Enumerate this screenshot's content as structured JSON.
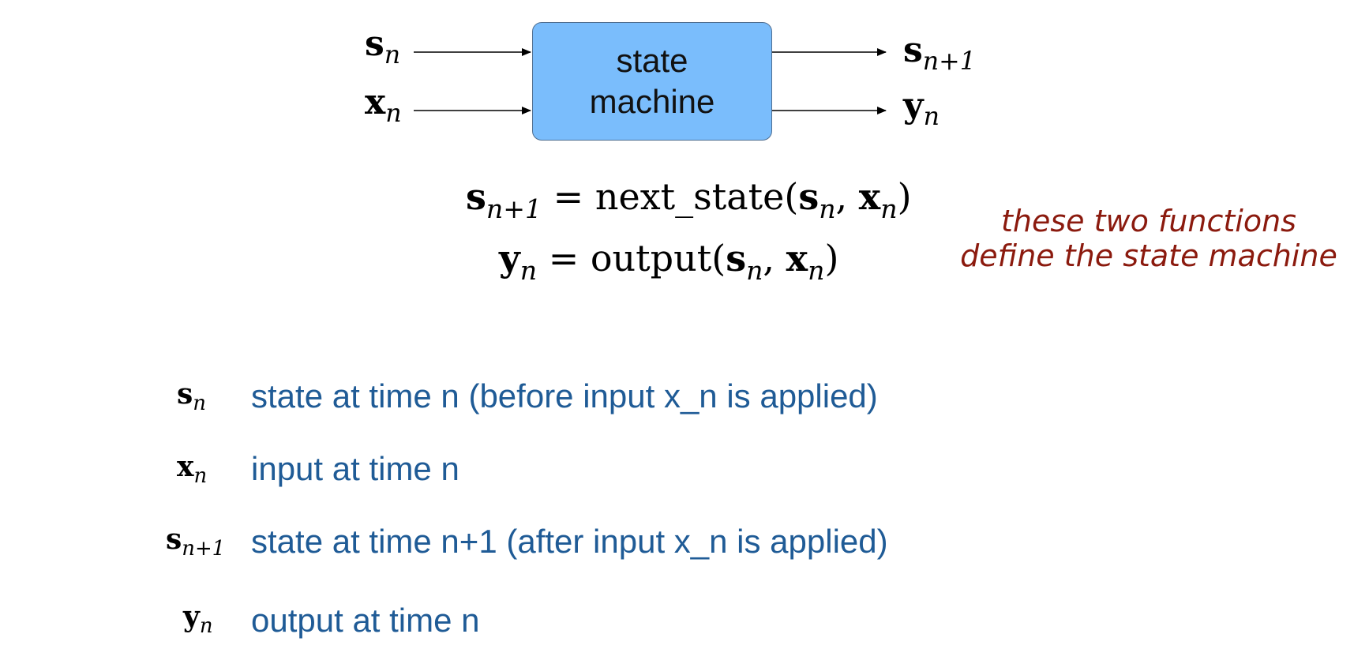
{
  "diagram": {
    "box_label_line1": "state",
    "box_label_line2": "machine",
    "inputs": [
      {
        "base": "s",
        "sub": "n"
      },
      {
        "base": "x",
        "sub": "n"
      }
    ],
    "outputs": [
      {
        "base": "s",
        "sub": "n+1"
      },
      {
        "base": "y",
        "sub": "n"
      }
    ],
    "box_color": "#7abdfc"
  },
  "equations": {
    "eq1": {
      "lhs_base": "s",
      "lhs_sub": "n+1",
      "equals": "=",
      "fn": "next_state",
      "args": "(s, x)"
    },
    "eq2": {
      "lhs_base": "y",
      "lhs_sub": "n",
      "equals": "=",
      "fn": "output",
      "args": "(s, x)"
    }
  },
  "note": {
    "line1": "these two functions",
    "line2": "define the state machine",
    "color": "#8b1a0e"
  },
  "definitions": [
    {
      "base": "s",
      "sub": "n",
      "text": "state at time n (before input x_n is applied)"
    },
    {
      "base": "x",
      "sub": "n",
      "text": "input at time n"
    },
    {
      "base": "s",
      "sub": "n+1",
      "text": "state at time n+1  (after input x_n is applied)"
    },
    {
      "base": "y",
      "sub": "n",
      "text": "output at time n"
    }
  ],
  "text_color": "#1f5b96"
}
